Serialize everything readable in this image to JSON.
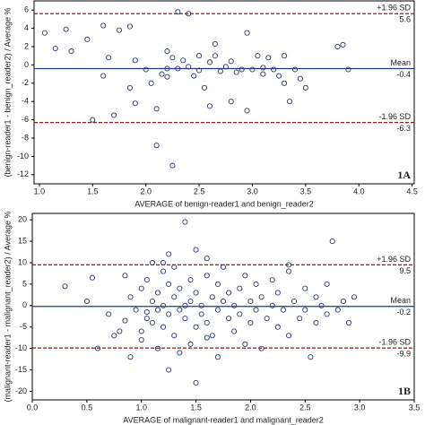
{
  "chart_data": [
    {
      "type": "scatter",
      "panel_label": "1A",
      "x_label": "AVERAGE of benign-reader1 and benign_reader2",
      "y_label": "(benign-reader1 - benign_reader2) / Average %",
      "xlim": [
        0.95,
        4.52
      ],
      "ylim": [
        -13,
        7
      ],
      "xticks": [
        {
          "value": 1,
          "label": "1.0"
        },
        1.5,
        {
          "value": 2,
          "label": "2.0"
        },
        2.5,
        {
          "value": 3,
          "label": "3.0"
        },
        3.5,
        {
          "value": 4,
          "label": "4.0"
        },
        4.5
      ],
      "yticks": [
        6,
        4,
        2,
        0,
        -2,
        -4,
        -6,
        -8,
        -10,
        -12
      ],
      "marker_color": "#2b3a67",
      "reference_lines": [
        {
          "label": "+1.96 SD",
          "value": 5.6,
          "color": "#8b1a1a",
          "style": "dashed"
        },
        {
          "label": "Mean",
          "value": -0.4,
          "color": "#1f3a93",
          "style": "solid"
        },
        {
          "label": "-1.96 SD",
          "value": -6.3,
          "color": "#8b1a1a",
          "style": "dashed"
        }
      ],
      "series": [
        {
          "x": [
            1.05,
            1.15,
            1.25,
            1.3,
            1.45,
            1.5,
            1.6,
            1.6,
            1.65,
            1.7,
            1.75,
            1.85,
            1.85,
            1.9,
            1.9,
            2.0,
            2.05,
            2.1,
            2.1,
            2.15,
            2.2,
            2.2,
            2.25,
            2.25,
            2.3,
            2.3,
            2.35,
            2.4,
            2.4,
            2.45,
            2.5,
            2.5,
            2.6,
            2.6,
            2.65,
            2.65,
            2.7,
            2.75,
            2.8,
            2.8,
            2.85,
            2.9,
            2.95,
            2.95,
            3.0,
            3.05,
            3.1,
            3.1,
            3.15,
            3.2,
            3.25,
            3.3,
            3.3,
            3.35,
            3.4,
            3.45,
            3.5,
            3.8,
            3.85,
            3.9,
            2.55,
            2.2
          ],
          "values": [
            3.5,
            1.8,
            3.9,
            1.5,
            2.8,
            -6,
            -1.2,
            4.3,
            0.8,
            -5.5,
            3.8,
            4.2,
            -2.5,
            0.5,
            -4.2,
            -0.5,
            -2,
            -4.8,
            -8.8,
            -1,
            -0.4,
            1.5,
            0.8,
            -11,
            5.8,
            -0.4,
            0.5,
            5.6,
            -0.2,
            -1.2,
            -0.6,
            1,
            0.3,
            -4.5,
            2.3,
            1,
            -0.7,
            -0.2,
            0.4,
            -4,
            -0.8,
            -0.5,
            3.5,
            -5,
            -0.5,
            1,
            -0.3,
            -1,
            0.8,
            -0.5,
            -1.2,
            1,
            -2,
            -4,
            -0.5,
            -1.5,
            -2.5,
            2,
            2.2,
            -0.5,
            -2.5,
            -1.3
          ]
        }
      ]
    },
    {
      "type": "scatter",
      "panel_label": "1B",
      "x_label": "AVERAGE of malignant-reader1 and malignant_reader2",
      "y_label": "(malignant-reader1 - malignant_reader2) / Average %",
      "xlim": [
        0,
        3.5
      ],
      "ylim": [
        -22,
        21.5
      ],
      "xticks": [
        {
          "value": 0,
          "label": "0.0"
        },
        0.5,
        {
          "value": 1,
          "label": "1.0"
        },
        1.5,
        {
          "value": 2,
          "label": "2.0"
        },
        2.5,
        {
          "value": 3,
          "label": "3.0"
        },
        3.5
      ],
      "yticks": [
        20,
        15,
        10,
        5,
        0,
        -5,
        -10,
        -15,
        -20
      ],
      "marker_color": "#2b3a67",
      "reference_lines": [
        {
          "label": "+1.96 SD",
          "value": 9.5,
          "color": "#8b1a1a",
          "style": "dashed"
        },
        {
          "label": "Mean",
          "value": -0.2,
          "color": "#1f3a93",
          "style": "solid"
        },
        {
          "label": "-1.96 SD",
          "value": -9.9,
          "color": "#8b1a1a",
          "style": "dashed"
        }
      ],
      "series": [
        {
          "x": [
            0.3,
            0.5,
            0.55,
            0.6,
            0.7,
            0.75,
            0.8,
            0.85,
            0.85,
            0.9,
            0.9,
            0.95,
            1.0,
            1.0,
            1.0,
            1.05,
            1.05,
            1.1,
            1.1,
            1.1,
            1.15,
            1.15,
            1.15,
            1.2,
            1.2,
            1.2,
            1.25,
            1.25,
            1.25,
            1.3,
            1.3,
            1.3,
            1.35,
            1.35,
            1.35,
            1.4,
            1.4,
            1.4,
            1.45,
            1.45,
            1.45,
            1.5,
            1.5,
            1.5,
            1.5,
            1.55,
            1.55,
            1.6,
            1.6,
            1.6,
            1.65,
            1.65,
            1.7,
            1.7,
            1.7,
            1.75,
            1.75,
            1.8,
            1.8,
            1.85,
            1.85,
            1.9,
            1.9,
            1.95,
            1.95,
            2.0,
            2.0,
            2.05,
            2.05,
            2.1,
            2.1,
            2.15,
            2.2,
            2.2,
            2.25,
            2.25,
            2.3,
            2.35,
            2.35,
            2.4,
            2.45,
            2.5,
            2.5,
            2.55,
            2.6,
            2.6,
            2.65,
            2.7,
            2.7,
            2.75,
            2.8,
            2.85,
            2.9,
            2.95,
            1.2,
            1.6,
            2.35,
            1.05,
            1.25
          ],
          "values": [
            4.5,
            1,
            6.5,
            -10,
            -2,
            -7,
            -6,
            -3.5,
            7,
            2,
            -12,
            -1,
            4,
            -6,
            -8,
            6,
            -3,
            1,
            10,
            -4,
            3,
            -10,
            -1,
            8,
            -5,
            0,
            5,
            -2,
            -15,
            2,
            -7,
            9,
            -1,
            4,
            -11,
            19.5,
            0,
            -3,
            6,
            -9,
            1,
            3,
            -5,
            13,
            -18,
            0,
            -2,
            7,
            -4,
            11,
            2,
            -7,
            -1,
            5,
            -12,
            1,
            9,
            -3,
            3,
            -6,
            0,
            4,
            -2,
            7,
            -9,
            1,
            -4,
            5,
            -1,
            -10,
            2,
            -3,
            6,
            0,
            -5,
            3,
            -1,
            8,
            -7,
            1,
            -3,
            4,
            -1,
            -12,
            2,
            -4,
            0,
            5,
            -2,
            15,
            -1,
            1,
            -4,
            2,
            10,
            -7.5,
            9.5,
            -1.5,
            12
          ]
        }
      ]
    }
  ]
}
